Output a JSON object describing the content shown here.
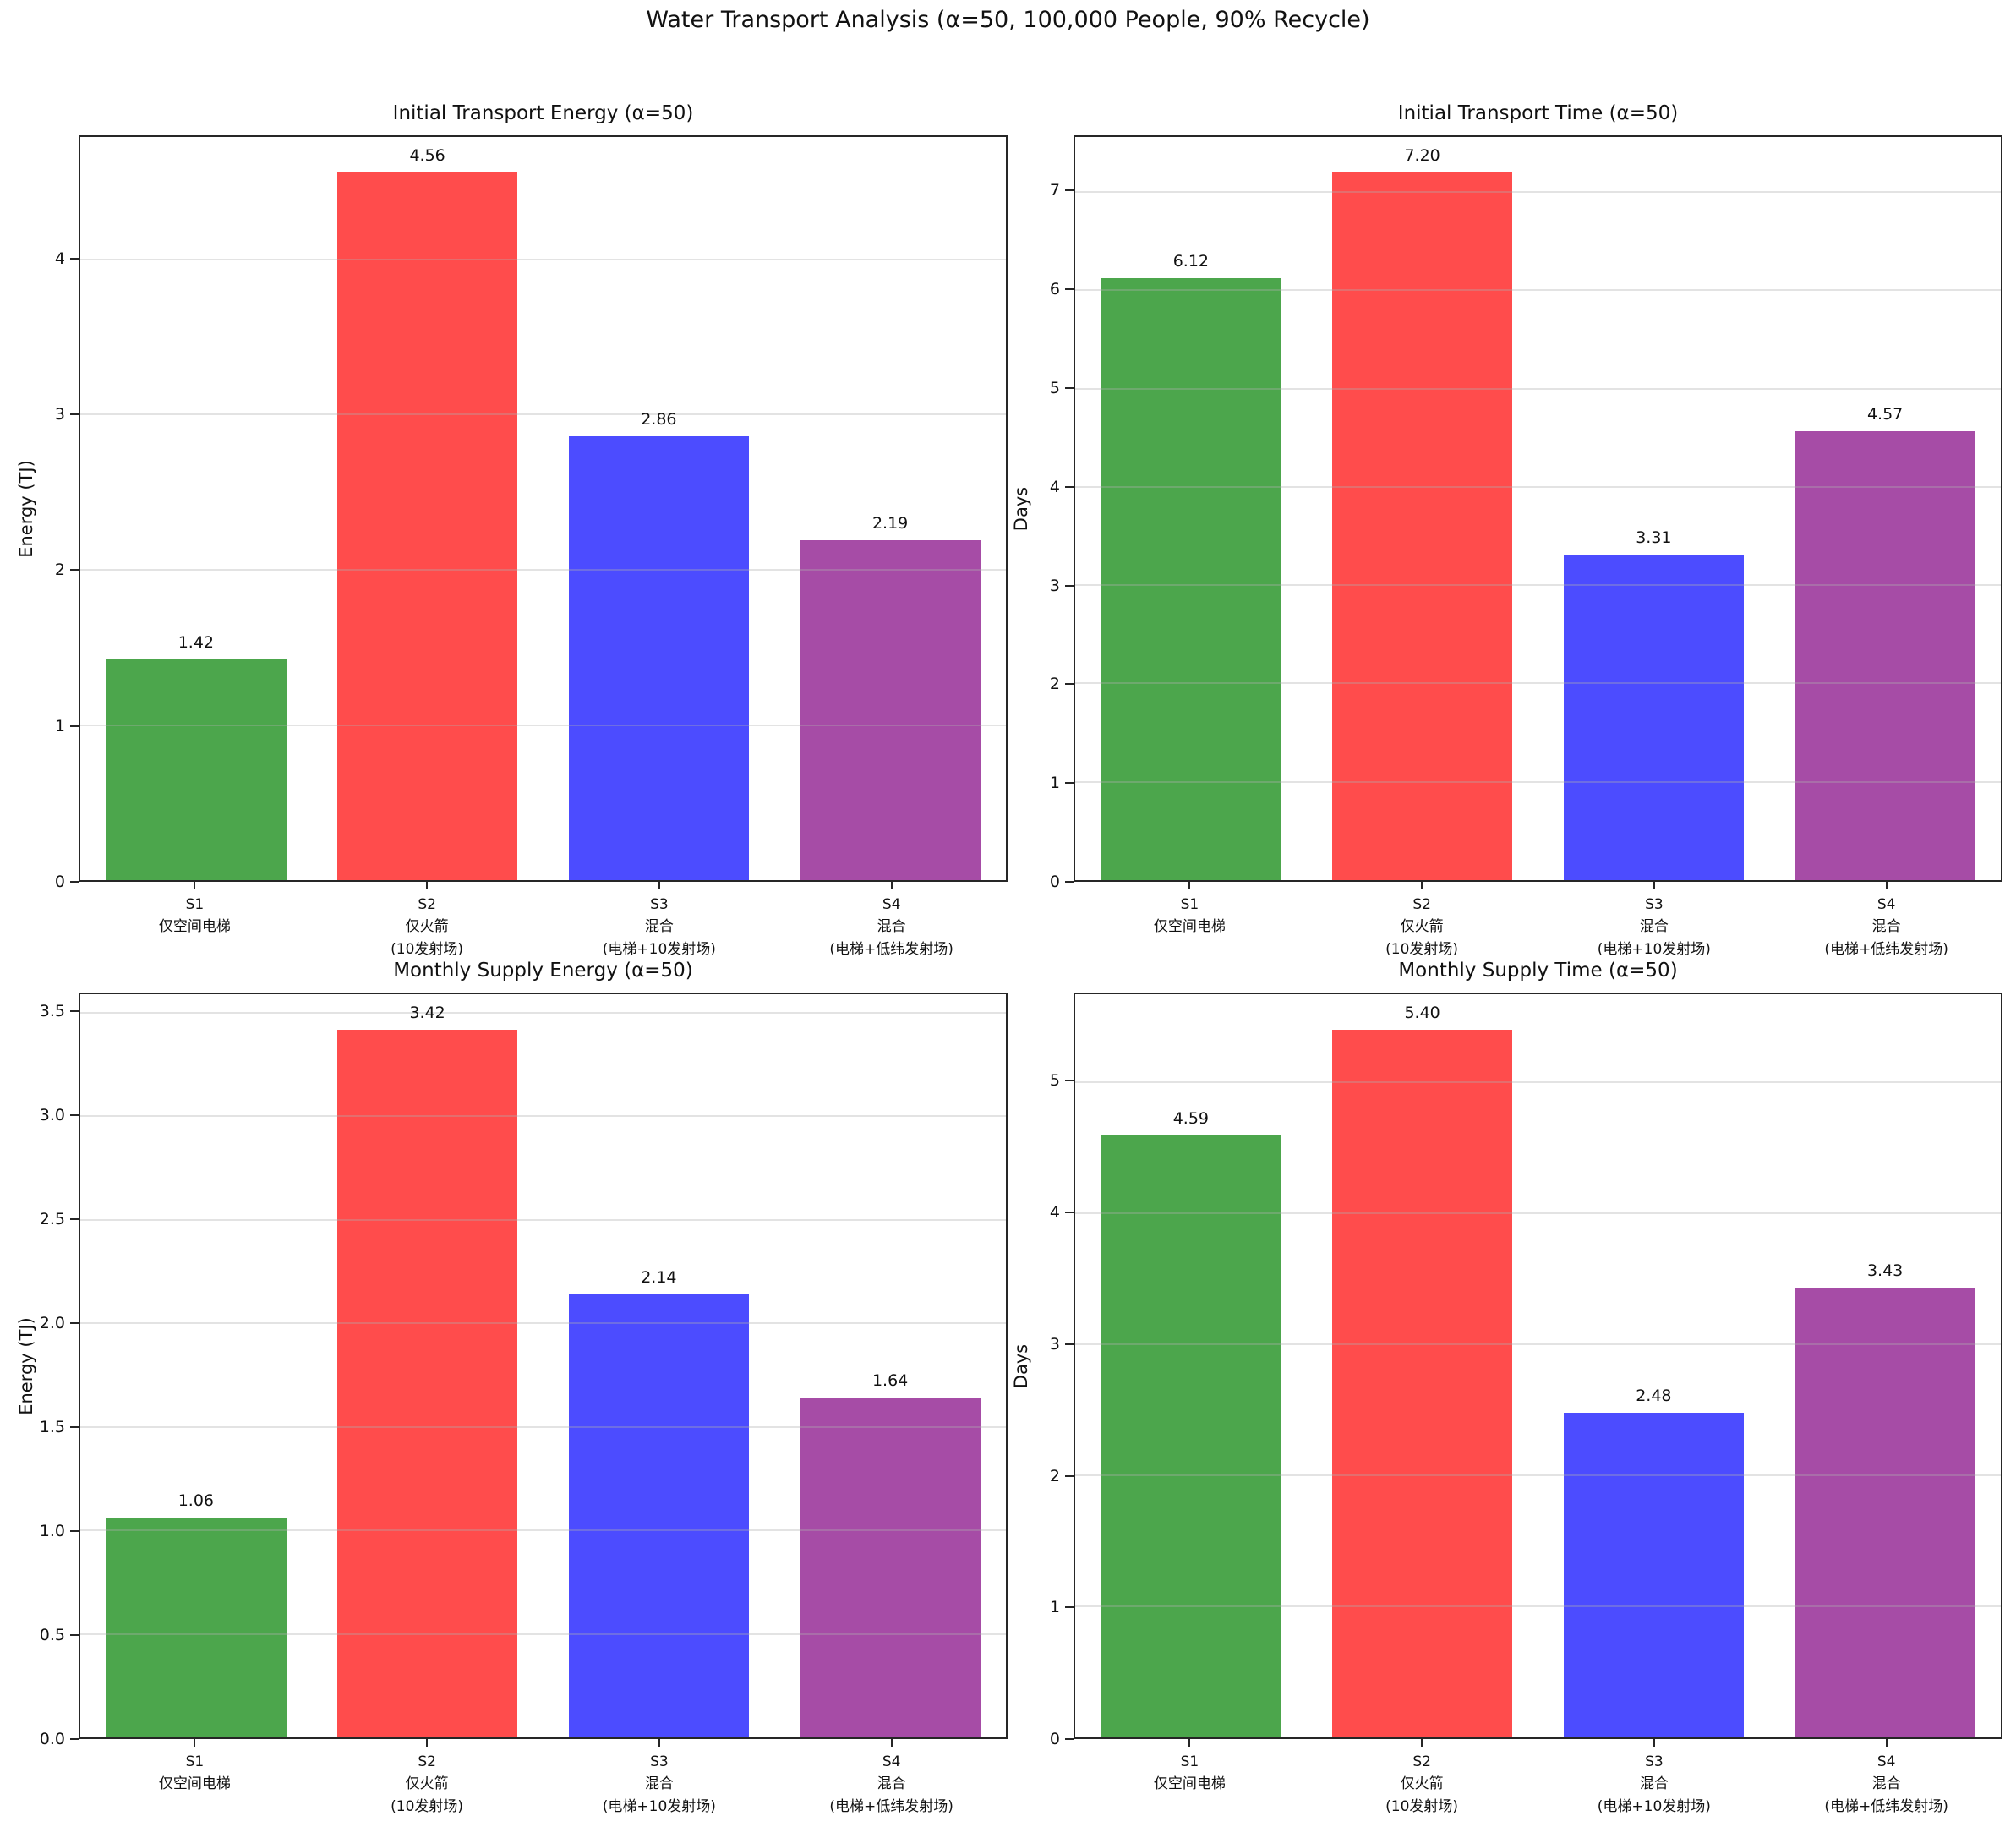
{
  "figure": {
    "suptitle": "Water Transport Analysis (α=50, 100,000 People, 90% Recycle)",
    "background": "#ffffff"
  },
  "palette": {
    "bar_colors": [
      "#4CA64C",
      "#FF4C4C",
      "#4C4CFF",
      "#A64CA6"
    ],
    "grid": "#E7E7E7",
    "spine": "#262626",
    "text": "#111111"
  },
  "categories_lines": [
    [
      "S1",
      "仅空间电梯"
    ],
    [
      "S2",
      "仅火箭",
      "(10发射场)"
    ],
    [
      "S3",
      "混合",
      "(电梯+10发射场)"
    ],
    [
      "S4",
      "混合",
      "(电梯+低纬发射场)"
    ]
  ],
  "chart_data": [
    {
      "type": "bar",
      "title": "Initial Transport Energy (α=50)",
      "xlabel": "",
      "ylabel": "Energy (TJ)",
      "categories": [
        "S1 仅空间电梯",
        "S2 仅火箭 (10发射场)",
        "S3 混合 (电梯+10发射场)",
        "S4 混合 (电梯+低纬发射场)"
      ],
      "values": [
        1.42,
        4.56,
        2.86,
        2.19
      ],
      "value_labels": [
        "1.42",
        "4.56",
        "2.86",
        "2.19"
      ],
      "yticks": [
        0,
        1,
        2,
        3,
        4
      ],
      "ytick_labels": [
        "0",
        "1",
        "2",
        "3",
        "4"
      ],
      "ylim": [
        0,
        4.79
      ],
      "grid": true,
      "legend": null
    },
    {
      "type": "bar",
      "title": "Initial Transport Time (α=50)",
      "xlabel": "",
      "ylabel": "Days",
      "categories": [
        "S1 仅空间电梯",
        "S2 仅火箭 (10发射场)",
        "S3 混合 (电梯+10发射场)",
        "S4 混合 (电梯+低纬发射场)"
      ],
      "values": [
        6.12,
        7.2,
        3.31,
        4.57
      ],
      "value_labels": [
        "6.12",
        "7.20",
        "3.31",
        "4.57"
      ],
      "yticks": [
        0,
        1,
        2,
        3,
        4,
        5,
        6,
        7
      ],
      "ytick_labels": [
        "0",
        "1",
        "2",
        "3",
        "4",
        "5",
        "6",
        "7"
      ],
      "ylim": [
        0,
        7.56
      ],
      "grid": true,
      "legend": null
    },
    {
      "type": "bar",
      "title": "Monthly Supply Energy (α=50)",
      "xlabel": "",
      "ylabel": "Energy (TJ)",
      "categories": [
        "S1 仅空间电梯",
        "S2 仅火箭 (10发射场)",
        "S3 混合 (电梯+10发射场)",
        "S4 混合 (电梯+低纬发射场)"
      ],
      "values": [
        1.06,
        3.42,
        2.14,
        1.64
      ],
      "value_labels": [
        "1.06",
        "3.42",
        "2.14",
        "1.64"
      ],
      "yticks": [
        0,
        0.5,
        1.0,
        1.5,
        2.0,
        2.5,
        3.0,
        3.5
      ],
      "ytick_labels": [
        "0.0",
        "0.5",
        "1.0",
        "1.5",
        "2.0",
        "2.5",
        "3.0",
        "3.5"
      ],
      "ylim": [
        0,
        3.59
      ],
      "grid": true,
      "legend": null
    },
    {
      "type": "bar",
      "title": "Monthly Supply Time (α=50)",
      "xlabel": "",
      "ylabel": "Days",
      "categories": [
        "S1 仅空间电梯",
        "S2 仅火箭 (10发射场)",
        "S3 混合 (电梯+10发射场)",
        "S4 混合 (电梯+低纬发射场)"
      ],
      "values": [
        4.59,
        5.4,
        2.48,
        3.43
      ],
      "value_labels": [
        "4.59",
        "5.40",
        "2.48",
        "3.43"
      ],
      "yticks": [
        0,
        1,
        2,
        3,
        4,
        5
      ],
      "ytick_labels": [
        "0",
        "1",
        "2",
        "3",
        "4",
        "5"
      ],
      "ylim": [
        0,
        5.67
      ],
      "grid": true,
      "legend": null
    }
  ]
}
